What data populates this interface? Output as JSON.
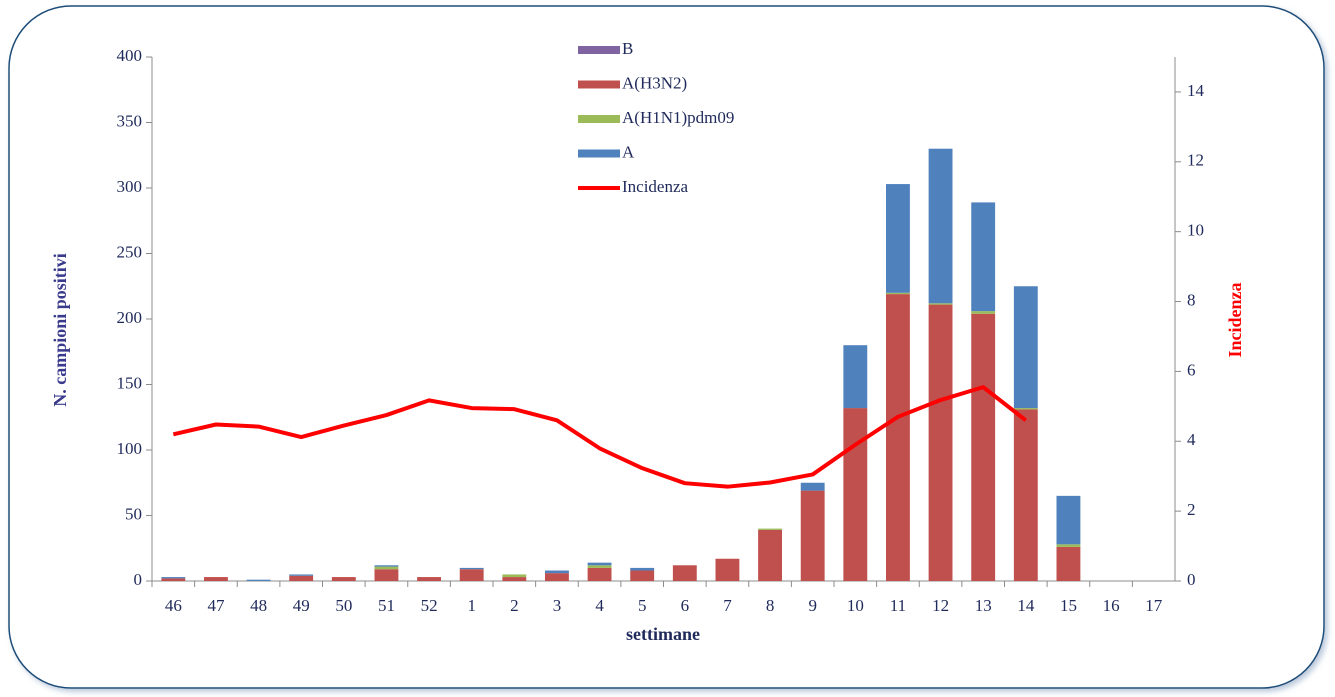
{
  "chart_data": {
    "type": "bar",
    "stacked": true,
    "x_label": "settimane",
    "y_label": "N. campioni positivi",
    "y2_label": "Incidenza",
    "categories": [
      "46",
      "47",
      "48",
      "49",
      "50",
      "51",
      "52",
      "1",
      "2",
      "3",
      "4",
      "5",
      "6",
      "7",
      "8",
      "9",
      "10",
      "11",
      "12",
      "13",
      "14",
      "15",
      "16",
      "17"
    ],
    "series": [
      {
        "name": "B",
        "color": "#8064a2",
        "values": [
          0,
          0,
          0,
          0,
          0,
          0,
          0,
          0,
          0,
          0,
          0,
          0,
          0,
          0,
          0,
          0,
          0,
          0,
          0,
          0,
          0,
          0,
          0,
          0
        ]
      },
      {
        "name": "A(H3N2)",
        "color": "#c0504d",
        "values": [
          2,
          3,
          0,
          4,
          3,
          9,
          3,
          9,
          3,
          6,
          10,
          8,
          12,
          17,
          39,
          69,
          132,
          219,
          211,
          204,
          131,
          26,
          0,
          0
        ]
      },
      {
        "name": "A(H1N1)pdm09",
        "color": "#9bbb59",
        "values": [
          0,
          0,
          0,
          0,
          0,
          2,
          0,
          0,
          2,
          0,
          2,
          0,
          0,
          0,
          1,
          0,
          0,
          1,
          1,
          2,
          1,
          2,
          0,
          0
        ]
      },
      {
        "name": "A",
        "color": "#4f81bd",
        "values": [
          1,
          0,
          1,
          1,
          0,
          1,
          0,
          1,
          0,
          2,
          2,
          2,
          0,
          0,
          0,
          6,
          48,
          83,
          118,
          83,
          93,
          37,
          0,
          0
        ]
      },
      {
        "name": "Incidenza",
        "color": "#ff0000",
        "type": "line",
        "axis": "y2",
        "values": [
          4.2,
          4.48,
          4.42,
          4.12,
          4.45,
          4.75,
          5.17,
          4.95,
          4.92,
          4.6,
          3.8,
          3.23,
          2.8,
          2.7,
          2.82,
          3.05,
          3.9,
          4.7,
          5.18,
          5.55,
          4.6,
          null,
          null,
          null
        ]
      }
    ],
    "ylim": [
      0,
      400
    ],
    "yticks": [
      0,
      50,
      100,
      150,
      200,
      250,
      300,
      350,
      400
    ],
    "y2lim": [
      0,
      15
    ],
    "y2ticks": [
      0,
      2,
      4,
      6,
      8,
      10,
      12,
      14
    ],
    "grid": false
  }
}
